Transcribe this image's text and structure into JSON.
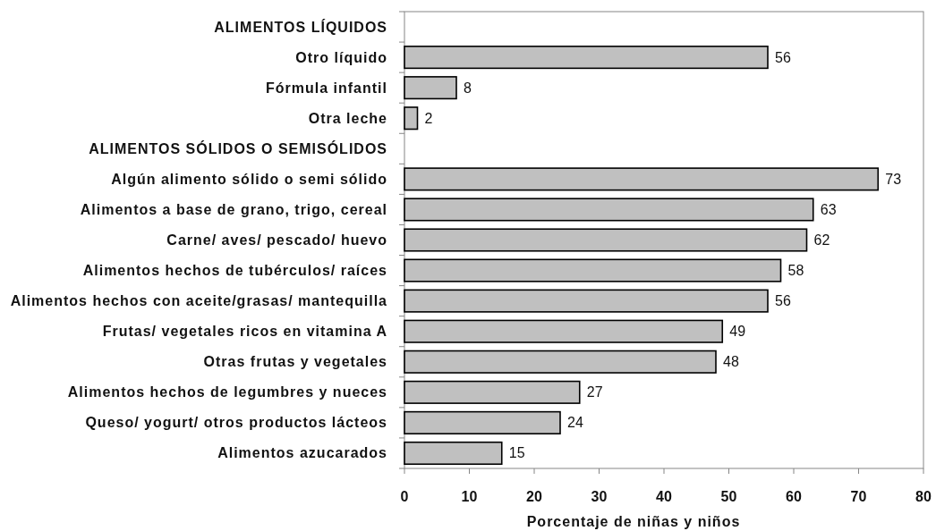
{
  "chart_data": {
    "type": "bar",
    "orientation": "horizontal",
    "categories": [
      "ALIMENTOS LÍQUIDOS",
      "Otro líquido",
      "Fórmula infantil",
      "Otra leche",
      "ALIMENTOS SÓLIDOS O SEMISÓLIDOS",
      "Algún alimento sólido o semi sólido",
      "Alimentos a base de grano, trigo, cereal",
      "Carne/ aves/ pescado/ huevo",
      "Alimentos hechos de tubérculos/ raíces",
      "Alimentos hechos con aceite/grasas/ mantequilla",
      "Frutas/ vegetales ricos en vitamina A",
      "Otras frutas y vegetales",
      "Alimentos hechos de legumbres y nueces",
      "Queso/ yogurt/ otros productos lácteos",
      "Alimentos azucarados"
    ],
    "values": [
      null,
      56,
      8,
      2,
      null,
      73,
      63,
      62,
      58,
      56,
      49,
      48,
      27,
      24,
      15
    ],
    "color": "#c0c0c0",
    "xlabel": "Porcentaje de niñas y niños",
    "xlim": [
      0,
      80
    ],
    "xticks": [
      0,
      10,
      20,
      30,
      40,
      50,
      60,
      70,
      80
    ],
    "data_labels": true
  }
}
